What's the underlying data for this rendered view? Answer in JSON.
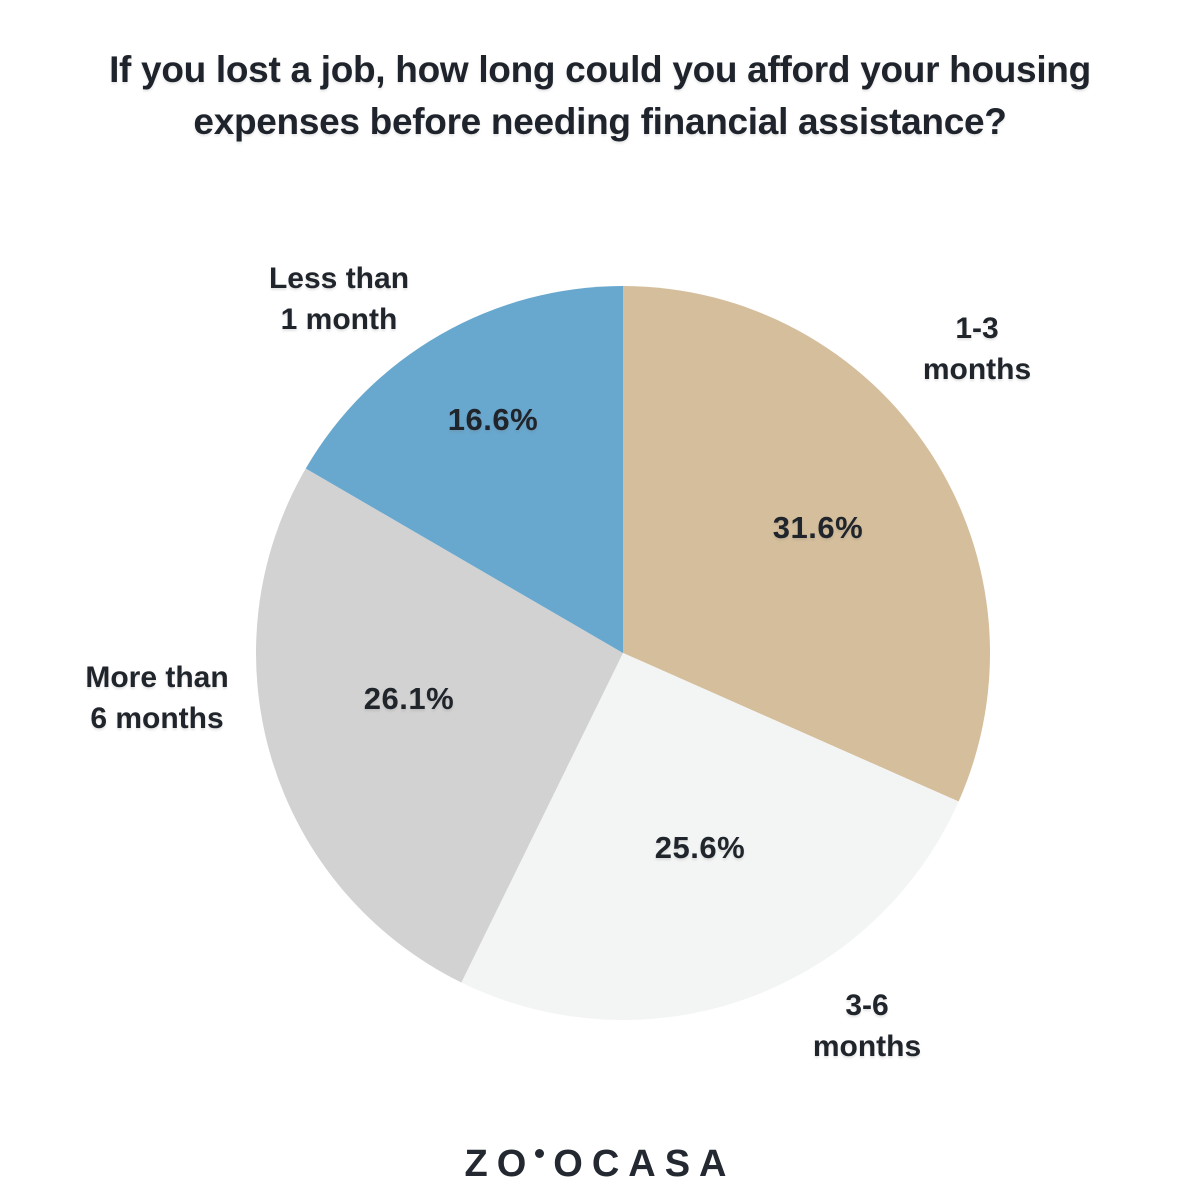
{
  "title_lines": [
    "If you lost a job, how long could you afford your housing",
    "expenses before needing financial assistance?"
  ],
  "chart_data": {
    "type": "pie",
    "title": "If you lost a job, how long could you afford your housing expenses before needing financial assistance?",
    "start_angle_deg": 0,
    "direction": "clockwise",
    "legend": "none",
    "value_labels": "inside",
    "background": "#FFFFFF",
    "slices": [
      {
        "label": "1-3 months",
        "label_lines": [
          "1-3",
          "months"
        ],
        "value": 31.6,
        "pct_label": "31.6%",
        "color": "#D5BE9B"
      },
      {
        "label": "3-6 months",
        "label_lines": [
          "3-6",
          "months"
        ],
        "value": 25.6,
        "pct_label": "25.6%",
        "color": "#F3F4F4"
      },
      {
        "label": "More than 6 months",
        "label_lines": [
          "More than",
          "6 months"
        ],
        "value": 26.1,
        "pct_label": "26.1%",
        "color": "#D2D2D2"
      },
      {
        "label": "Less than 1 month",
        "label_lines": [
          "Less than",
          "1 month"
        ],
        "value": 16.6,
        "pct_label": "16.6%",
        "color": "#68A7CE"
      }
    ]
  },
  "branding": {
    "logo_text": "ZOOCASA",
    "logo_text_left": "ZO",
    "logo_text_right": "OCASA",
    "logo_color": "#232831"
  },
  "colors": {
    "background": "#FFFFFF",
    "title_text": "#1F242C",
    "label_text": "#20252C"
  }
}
